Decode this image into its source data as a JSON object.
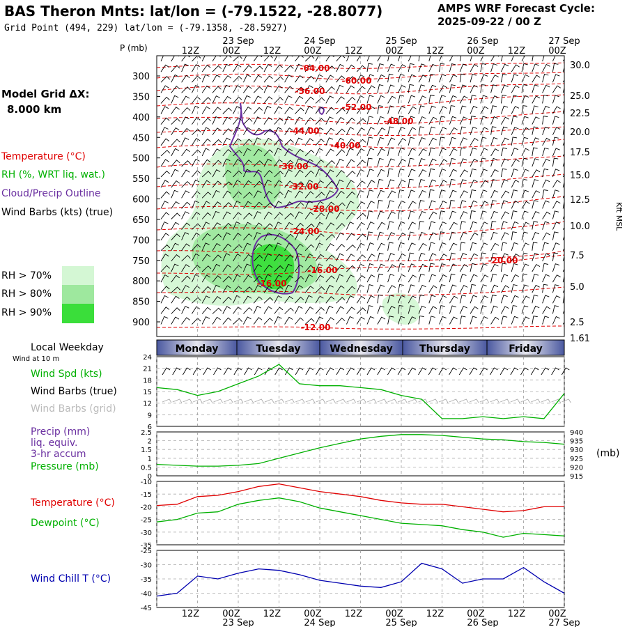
{
  "header": {
    "title": "BAS Theron Mnts:  lat/lon = (-79.1522, -28.8077)",
    "subtitle": "Grid Point (494, 229) lat/lon = (-79.1358, -28.5927)",
    "cycle_label": "AMPS WRF Forecast Cycle:",
    "cycle_value": "2025-09-22 / 00  Z"
  },
  "legend": {
    "grid_label": "Model Grid ΔX:",
    "grid_value": "8.000 km",
    "temperature": "Temperature (°C)",
    "rh": "RH (%, WRT liq. wat.)",
    "cloud": "Cloud/Precip Outline",
    "wind": "Wind Barbs (kts) (true)",
    "rh70": "RH > 70%",
    "rh80": "RH > 80%",
    "rh90": "RH > 90%"
  },
  "colors": {
    "temperature": "#e00000",
    "rh_label": "#00b000",
    "cloud": "#6a2fa0",
    "rh70": "#d4f7d4",
    "rh80": "#9ee89e",
    "rh90": "#3ade3a",
    "pressure": "#00b000",
    "windchill": "#0000b0",
    "weekday_band": "#5a68a8"
  },
  "time_axis": {
    "top_label_p": "P (mb)",
    "hour_ticks": [
      "12Z",
      "00Z",
      "12Z",
      "00Z",
      "12Z",
      "00Z",
      "12Z",
      "00Z",
      "12Z",
      "00Z"
    ],
    "date_ticks": [
      "23 Sep",
      "24 Sep",
      "25 Sep",
      "26 Sep",
      "27 Sep"
    ]
  },
  "weekday": {
    "label": "Local Weekday",
    "days": [
      "Monday",
      "Tuesday",
      "Wednesday",
      "Thursday",
      "Friday"
    ],
    "wind_at": "Wind at 10 m"
  },
  "panel_labels": {
    "wind_spd": "Wind Spd (kts)",
    "wind_true": "Wind Barbs (true)",
    "wind_grid": "Wind Barbs (grid)",
    "precip1": "Precip (mm)",
    "precip2": "liq. equiv.",
    "precip3": "3-hr accum",
    "pressure": "Pressure (mb)",
    "pressure_unit": "(mb)",
    "temperature": "Temperature (°C)",
    "dewpoint": "Dewpoint (°C)",
    "windchill": "Wind Chill T (°C)",
    "kft": "Kft MSL"
  },
  "chart_data": [
    {
      "type": "contour",
      "title": "Time-height cross section",
      "ylabel": "P (mb)",
      "y_ticks": [
        300,
        350,
        400,
        450,
        500,
        550,
        600,
        650,
        700,
        750,
        800,
        850,
        900
      ],
      "right_axis_kft": [
        "30.0",
        "25.0",
        "22.5",
        "20.0",
        "17.5",
        "15.0",
        "12.5",
        "10.0",
        "7.5",
        "5.0",
        "2.5",
        "1.61"
      ],
      "temperature_contour_labels": [
        "-64.00",
        "-60.00",
        "-56.00",
        "-52.00",
        "-48.00",
        "-44.00",
        "-40.00",
        "-36.00",
        "-32.00",
        "-28.00",
        "-24.00",
        "-20.00",
        "-16.00",
        "-16.00",
        "-12.00"
      ]
    },
    {
      "type": "line",
      "name": "wind_speed",
      "ylim": [
        6,
        24
      ],
      "y_ticks": [
        "24",
        "21",
        "18",
        "15",
        "12",
        "9",
        "6"
      ],
      "x_hours": [
        0,
        6,
        12,
        18,
        24,
        30,
        36,
        42,
        48,
        54,
        60,
        66,
        72,
        78,
        84,
        90,
        96,
        102,
        108,
        114,
        120
      ],
      "values": [
        16,
        15.5,
        14,
        15,
        17,
        19,
        22,
        17,
        16.5,
        16.5,
        16,
        15.5,
        14,
        13,
        8,
        8,
        8.5,
        8,
        8.5,
        8,
        14.5
      ]
    },
    {
      "type": "line",
      "name": "precip_pressure",
      "precip_ticks": [
        "2.5",
        "2",
        "1.5",
        "1",
        "0.5",
        "0"
      ],
      "pressure_ticks": [
        "940",
        "935",
        "930",
        "925",
        "920",
        "915"
      ],
      "pressure_ylim": [
        915,
        940
      ],
      "pressure_x_hours": [
        0,
        6,
        12,
        18,
        24,
        30,
        36,
        42,
        48,
        54,
        60,
        66,
        72,
        78,
        84,
        90,
        96,
        102,
        108,
        114,
        120
      ],
      "pressure_values": [
        921.5,
        921,
        920.5,
        920.5,
        921,
        922,
        925,
        928,
        931,
        933.5,
        936,
        937.5,
        938.5,
        938.5,
        938,
        937,
        936,
        935.5,
        934.5,
        934,
        933
      ]
    },
    {
      "type": "line",
      "name": "temperature_dewpoint",
      "y_ticks": [
        "-10",
        "-15",
        "-20",
        "-25",
        "-30",
        "-35"
      ],
      "ylim": [
        -35,
        -10
      ],
      "x_hours": [
        0,
        6,
        12,
        18,
        24,
        30,
        36,
        42,
        48,
        54,
        60,
        66,
        72,
        78,
        84,
        90,
        96,
        102,
        108,
        114,
        120
      ],
      "series": [
        {
          "name": "Temperature",
          "values": [
            -19.5,
            -19,
            -16,
            -15.5,
            -14,
            -12,
            -11,
            -12.5,
            -14,
            -15,
            -16,
            -17.5,
            -18.5,
            -19,
            -19,
            -20,
            -21,
            -22,
            -21.5,
            -20,
            -20
          ]
        },
        {
          "name": "Dewpoint",
          "values": [
            -26,
            -25,
            -22.5,
            -22,
            -19,
            -17.5,
            -16.5,
            -18,
            -20.5,
            -22,
            -23.5,
            -25,
            -26.5,
            -27,
            -27.5,
            -29,
            -30,
            -32,
            -30.5,
            -31,
            -31.5
          ]
        }
      ]
    },
    {
      "type": "line",
      "name": "wind_chill",
      "y_ticks": [
        "-25",
        "-30",
        "-35",
        "-40",
        "-45"
      ],
      "ylim": [
        -45,
        -25
      ],
      "x_hours": [
        0,
        6,
        12,
        18,
        24,
        30,
        36,
        42,
        48,
        54,
        60,
        66,
        72,
        78,
        84,
        90,
        96,
        102,
        108,
        114,
        120
      ],
      "values": [
        -41,
        -40,
        -34,
        -35,
        -33,
        -31.5,
        -32,
        -33.5,
        -35.5,
        -36.5,
        -37.5,
        -38,
        -36,
        -29.5,
        -31.5,
        -36.5,
        -35,
        -35,
        -31,
        -36,
        -40
      ]
    }
  ]
}
